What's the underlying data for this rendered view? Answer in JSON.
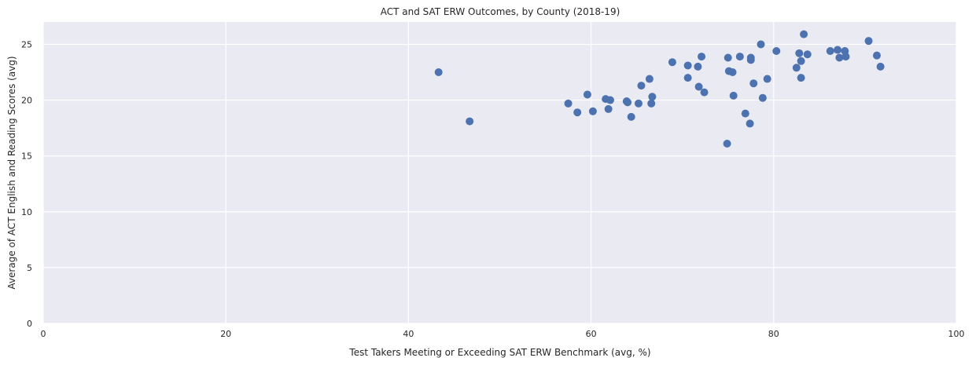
{
  "chart_data": {
    "type": "scatter",
    "title": "ACT and SAT ERW Outcomes, by County (2018-19)",
    "xlabel": "Test Takers Meeting or Exceeding SAT ERW Benchmark (avg, %)",
    "ylabel": "Average of ACT English and Reading Scores (avg)",
    "xlim": [
      0,
      100
    ],
    "ylim": [
      0,
      27
    ],
    "xticks": [
      0,
      20,
      40,
      60,
      80,
      100
    ],
    "yticks": [
      0,
      5,
      10,
      15,
      20,
      25
    ],
    "grid": true,
    "colors": {
      "background": "#eaeaf2",
      "grid": "#ffffff",
      "marker": "#4c72b0"
    },
    "series": [
      {
        "points": [
          {
            "x": 43.3,
            "y": 22.5
          },
          {
            "x": 46.7,
            "y": 18.1
          },
          {
            "x": 57.5,
            "y": 19.7
          },
          {
            "x": 58.5,
            "y": 18.9
          },
          {
            "x": 59.6,
            "y": 20.5
          },
          {
            "x": 60.2,
            "y": 19.0
          },
          {
            "x": 61.6,
            "y": 20.1
          },
          {
            "x": 61.9,
            "y": 19.2
          },
          {
            "x": 62.1,
            "y": 20.0
          },
          {
            "x": 63.9,
            "y": 19.9
          },
          {
            "x": 64.0,
            "y": 19.8
          },
          {
            "x": 64.4,
            "y": 18.5
          },
          {
            "x": 65.2,
            "y": 19.7
          },
          {
            "x": 65.5,
            "y": 21.3
          },
          {
            "x": 66.4,
            "y": 21.9
          },
          {
            "x": 66.6,
            "y": 19.7
          },
          {
            "x": 66.7,
            "y": 20.3
          },
          {
            "x": 68.9,
            "y": 23.4
          },
          {
            "x": 70.6,
            "y": 22.0
          },
          {
            "x": 70.6,
            "y": 23.1
          },
          {
            "x": 71.7,
            "y": 23.0
          },
          {
            "x": 71.8,
            "y": 21.2
          },
          {
            "x": 72.1,
            "y": 23.9
          },
          {
            "x": 72.4,
            "y": 20.7
          },
          {
            "x": 74.9,
            "y": 16.1
          },
          {
            "x": 75.0,
            "y": 23.8
          },
          {
            "x": 75.1,
            "y": 22.6
          },
          {
            "x": 75.5,
            "y": 22.5
          },
          {
            "x": 75.6,
            "y": 20.4
          },
          {
            "x": 76.3,
            "y": 23.9
          },
          {
            "x": 76.9,
            "y": 18.8
          },
          {
            "x": 77.4,
            "y": 17.9
          },
          {
            "x": 77.5,
            "y": 23.6
          },
          {
            "x": 77.5,
            "y": 23.8
          },
          {
            "x": 77.8,
            "y": 21.5
          },
          {
            "x": 78.6,
            "y": 25.0
          },
          {
            "x": 78.8,
            "y": 20.2
          },
          {
            "x": 79.3,
            "y": 21.9
          },
          {
            "x": 80.3,
            "y": 24.4
          },
          {
            "x": 82.5,
            "y": 22.9
          },
          {
            "x": 82.8,
            "y": 24.2
          },
          {
            "x": 83.0,
            "y": 22.0
          },
          {
            "x": 83.0,
            "y": 23.5
          },
          {
            "x": 83.3,
            "y": 25.9
          },
          {
            "x": 83.7,
            "y": 24.1
          },
          {
            "x": 86.2,
            "y": 24.4
          },
          {
            "x": 87.0,
            "y": 24.5
          },
          {
            "x": 87.2,
            "y": 23.8
          },
          {
            "x": 87.8,
            "y": 24.4
          },
          {
            "x": 87.9,
            "y": 23.9
          },
          {
            "x": 90.4,
            "y": 25.3
          },
          {
            "x": 91.3,
            "y": 24.0
          },
          {
            "x": 91.7,
            "y": 23.0
          }
        ]
      }
    ]
  }
}
